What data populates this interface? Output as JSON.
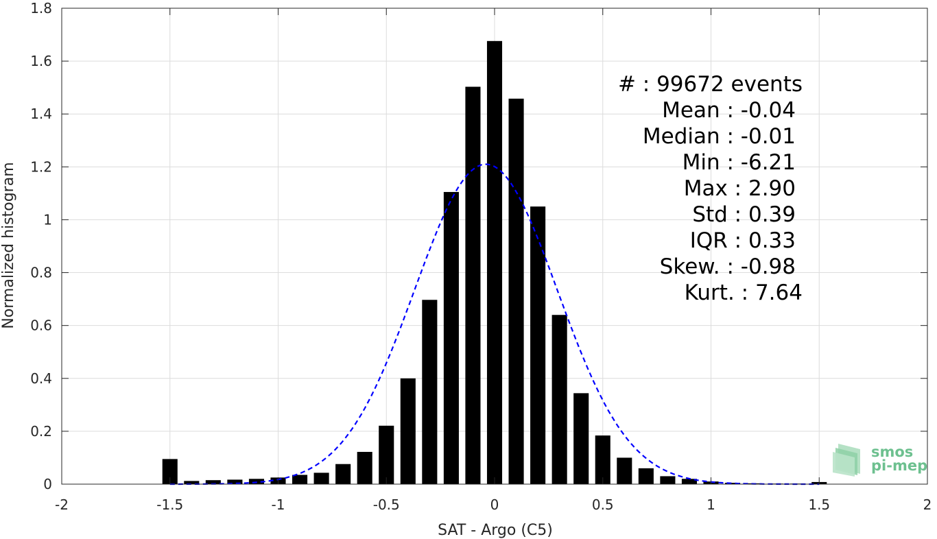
{
  "chart_data": {
    "type": "bar",
    "xlabel": "SAT - Argo (C5)",
    "ylabel": "Normalized histogram",
    "xlim": [
      -2,
      2
    ],
    "ylim": [
      0,
      1.8
    ],
    "xticks": [
      -2,
      -1.5,
      -1,
      -0.5,
      0,
      0.5,
      1,
      1.5,
      2
    ],
    "xtick_labels": [
      "-2",
      "-1.5",
      "-1",
      "-0.5",
      "0",
      "0.5",
      "1",
      "1.5",
      "2"
    ],
    "yticks": [
      0,
      0.2,
      0.4,
      0.6,
      0.8,
      1,
      1.2,
      1.4,
      1.6,
      1.8
    ],
    "ytick_labels": [
      "0",
      "0.2",
      "0.4",
      "0.6",
      "0.8",
      "1",
      "1.2",
      "1.4",
      "1.6",
      "1.8"
    ],
    "grid": true,
    "bar_width": 0.07,
    "x": [
      -1.5,
      -1.4,
      -1.3,
      -1.2,
      -1.1,
      -1.0,
      -0.9,
      -0.8,
      -0.7,
      -0.6,
      -0.5,
      -0.4,
      -0.3,
      -0.2,
      -0.1,
      0.0,
      0.1,
      0.2,
      0.3,
      0.4,
      0.5,
      0.6,
      0.7,
      0.8,
      0.9,
      1.0,
      1.1,
      1.2,
      1.3,
      1.4,
      1.5
    ],
    "values": [
      0.095,
      0.012,
      0.015,
      0.017,
      0.02,
      0.025,
      0.035,
      0.043,
      0.076,
      0.122,
      0.221,
      0.4,
      0.697,
      1.105,
      1.503,
      1.676,
      1.458,
      1.05,
      0.64,
      0.344,
      0.184,
      0.1,
      0.06,
      0.03,
      0.02,
      0.01,
      0.005,
      0.003,
      0.002,
      0.002,
      0.008
    ],
    "fit_curve": {
      "type": "normal",
      "mean": -0.04,
      "std": 0.33,
      "peak": 1.21,
      "color": "#0000ff",
      "style": "dashed"
    },
    "bar_color": "#000000",
    "annotations": [
      "#  : 99672 events",
      "Mean : -0.04",
      "Median : -0.01",
      "Min : -6.21",
      "Max : 2.90",
      "Std : 0.39",
      "IQR : 0.33",
      "Skew. : -0.98",
      "Kurt. : 7.64"
    ]
  },
  "logo": {
    "line1": "smos",
    "line2": "pi-mep",
    "color": "#6dc08f"
  }
}
